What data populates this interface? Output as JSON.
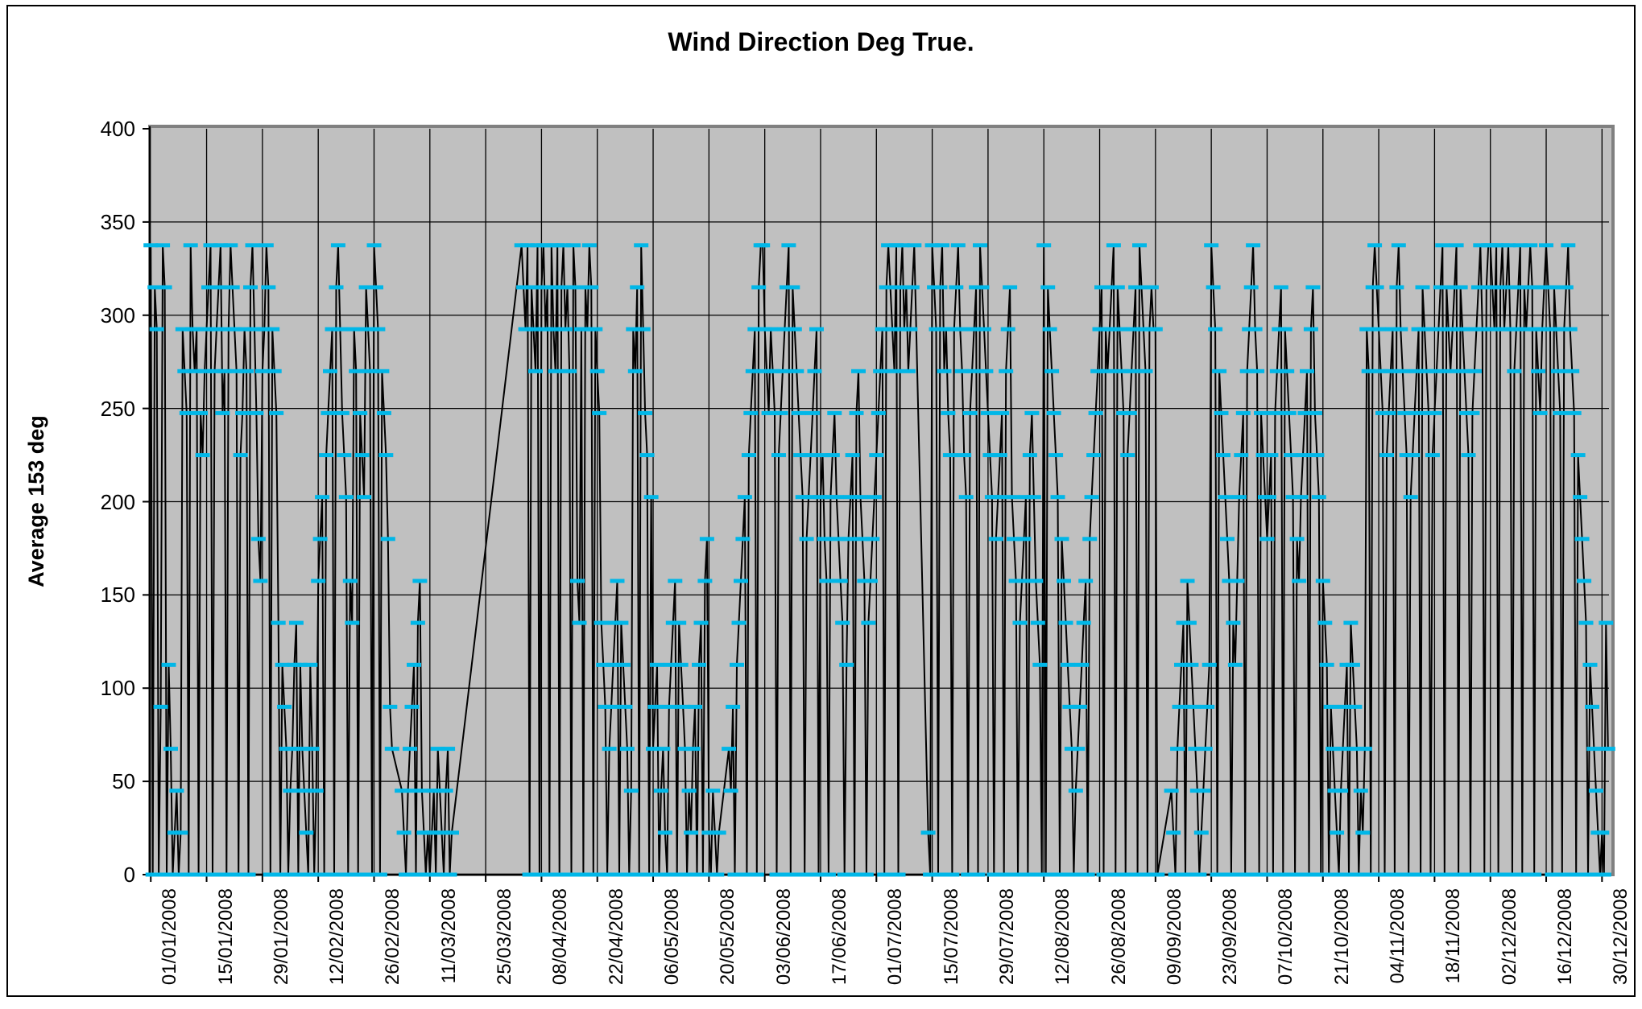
{
  "chart": {
    "title": "Wind Direction Deg True.",
    "y_axis_title": "Average 153 deg"
  },
  "chart_data": {
    "type": "line",
    "title": "Wind Direction Deg True.",
    "xlabel": "",
    "ylabel": "Average 153 deg",
    "ylim": [
      0,
      400
    ],
    "y_ticks": [
      0,
      50,
      100,
      150,
      200,
      250,
      300,
      350,
      400
    ],
    "x_tick_labels": [
      "01/01/2008",
      "15/01/2008",
      "29/01/2008",
      "12/02/2008",
      "26/02/2008",
      "11/03/2008",
      "25/03/2008",
      "08/04/2008",
      "22/04/2008",
      "06/05/2008",
      "20/05/2008",
      "03/06/2008",
      "17/06/2008",
      "01/07/2008",
      "15/07/2008",
      "29/07/2008",
      "12/08/2008",
      "26/08/2008",
      "09/09/2008",
      "23/09/2008",
      "07/10/2008",
      "21/10/2008",
      "04/11/2008",
      "18/11/2008",
      "02/12/2008",
      "16/12/2008",
      "30/12/2008"
    ],
    "x_tick_interval_days": 14,
    "points_per_day": 2,
    "start_date": "01/01/2008",
    "end_date": "31/12/2008",
    "value_quantization_deg": 22.5,
    "marker": "dash",
    "legend_position": "none",
    "grid": true,
    "gaps_interpolated": true,
    "colors": {
      "line": "#000000",
      "marker": "#00b7e8",
      "plot_bg": "#c0c0c0",
      "plot_border": "#808080",
      "grid": "#000000",
      "axis": "#000000",
      "text": "#000000",
      "chart_bg": "#ffffff"
    },
    "values": [
      337.5,
      0,
      315,
      292.5,
      0,
      90,
      337.5,
      315,
      0,
      112.5,
      67.5,
      0,
      22.5,
      45,
      0,
      22.5,
      292.5,
      270,
      247.5,
      0,
      337.5,
      292.5,
      270,
      292.5,
      0,
      247.5,
      225,
      270,
      292.5,
      315,
      337.5,
      0,
      270,
      292.5,
      315,
      337.5,
      247.5,
      270,
      0,
      292.5,
      337.5,
      315,
      292.5,
      270,
      0,
      225,
      247.5,
      292.5,
      270,
      0,
      315,
      337.5,
      292.5,
      247.5,
      180,
      157.5,
      270,
      292.5,
      337.5,
      315,
      0,
      292.5,
      270,
      247.5,
      135,
      0,
      112.5,
      90,
      67.5,
      0,
      45,
      67.5,
      112.5,
      135,
      0,
      112.5,
      67.5,
      45,
      22.5,
      0,
      112.5,
      67.5,
      0,
      45,
      157.5,
      180,
      202.5,
      0,
      225,
      247.5,
      270,
      292.5,
      0,
      315,
      337.5,
      292.5,
      247.5,
      225,
      202.5,
      0,
      157.5,
      135,
      292.5,
      270,
      0,
      247.5,
      225,
      202.5,
      315,
      292.5,
      270,
      0,
      337.5,
      315,
      292.5,
      0,
      270,
      247.5,
      225,
      180,
      90,
      67.5,
      null,
      null,
      null,
      null,
      45,
      22.5,
      0,
      45,
      67.5,
      90,
      112.5,
      0,
      135,
      157.5,
      45,
      22.5,
      0,
      22.5,
      0,
      22.5,
      45,
      0,
      67.5,
      45,
      22.5,
      0,
      45,
      67.5,
      0,
      22.5,
      null,
      null,
      null,
      null,
      null,
      null,
      null,
      null,
      null,
      null,
      null,
      null,
      null,
      null,
      null,
      null,
      null,
      null,
      null,
      null,
      null,
      null,
      null,
      null,
      null,
      null,
      null,
      null,
      null,
      null,
      null,
      null,
      null,
      null,
      337.5,
      315,
      292.5,
      337.5,
      0,
      315,
      292.5,
      270,
      337.5,
      0,
      315,
      337.5,
      292.5,
      315,
      0,
      337.5,
      292.5,
      270,
      337.5,
      0,
      315,
      337.5,
      292.5,
      315,
      270,
      0,
      337.5,
      315,
      157.5,
      135,
      292.5,
      0,
      315,
      292.5,
      337.5,
      315,
      0,
      292.5,
      270,
      247.5,
      135,
      112.5,
      90,
      0,
      67.5,
      90,
      112.5,
      135,
      157.5,
      0,
      135,
      112.5,
      90,
      67.5,
      0,
      45,
      292.5,
      270,
      315,
      0,
      337.5,
      292.5,
      247.5,
      225,
      0,
      202.5,
      67.5,
      90,
      112.5,
      0,
      45,
      67.5,
      22.5,
      0,
      90,
      112.5,
      135,
      157.5,
      0,
      135,
      112.5,
      90,
      67.5,
      0,
      45,
      22.5,
      67.5,
      90,
      0,
      112.5,
      135,
      0,
      157.5,
      180,
      22.5,
      0,
      45,
      22.5,
      0,
      22.5,
      null,
      null,
      null,
      null,
      67.5,
      45,
      90,
      0,
      112.5,
      135,
      157.5,
      180,
      202.5,
      0,
      225,
      247.5,
      270,
      292.5,
      0,
      315,
      337.5,
      337.5,
      292.5,
      270,
      247.5,
      292.5,
      270,
      247.5,
      0,
      225,
      247.5,
      270,
      292.5,
      315,
      337.5,
      0,
      315,
      292.5,
      270,
      247.5,
      225,
      202.5,
      0,
      180,
      202.5,
      225,
      247.5,
      270,
      292.5,
      0,
      202.5,
      225,
      180,
      157.5,
      0,
      202.5,
      225,
      247.5,
      202.5,
      180,
      157.5,
      135,
      0,
      112.5,
      180,
      202.5,
      225,
      0,
      247.5,
      270,
      202.5,
      180,
      157.5,
      0,
      135,
      157.5,
      180,
      202.5,
      225,
      247.5,
      270,
      292.5,
      0,
      315,
      337.5,
      315,
      292.5,
      270,
      337.5,
      0,
      315,
      337.5,
      292.5,
      315,
      270,
      292.5,
      315,
      337.5,
      null,
      null,
      null,
      null,
      null,
      null,
      22.5,
      0,
      337.5,
      315,
      292.5,
      0,
      315,
      337.5,
      270,
      292.5,
      247.5,
      225,
      0,
      292.5,
      315,
      337.5,
      292.5,
      270,
      225,
      202.5,
      0,
      247.5,
      270,
      292.5,
      315,
      0,
      337.5,
      315,
      292.5,
      270,
      247.5,
      225,
      202.5,
      0,
      180,
      202.5,
      225,
      247.5,
      0,
      270,
      292.5,
      315,
      202.5,
      180,
      157.5,
      0,
      135,
      157.5,
      180,
      202.5,
      0,
      225,
      247.5,
      202.5,
      157.5,
      135,
      112.5,
      0,
      337.5,
      0,
      315,
      292.5,
      270,
      247.5,
      225,
      202.5,
      0,
      180,
      157.5,
      135,
      112.5,
      90,
      67.5,
      0,
      45,
      67.5,
      90,
      112.5,
      135,
      157.5,
      0,
      180,
      202.5,
      225,
      247.5,
      270,
      292.5,
      315,
      0,
      292.5,
      270,
      292.5,
      315,
      337.5,
      0,
      315,
      292.5,
      270,
      247.5,
      0,
      225,
      247.5,
      270,
      292.5,
      315,
      0,
      337.5,
      315,
      292.5,
      270,
      0,
      292.5,
      315,
      292.5,
      292.5,
      0,
      null,
      null,
      null,
      null,
      null,
      null,
      45,
      22.5,
      0,
      67.5,
      90,
      112.5,
      135,
      0,
      157.5,
      135,
      112.5,
      90,
      67.5,
      45,
      0,
      22.5,
      45,
      67.5,
      90,
      112.5,
      337.5,
      315,
      292.5,
      0,
      270,
      247.5,
      225,
      202.5,
      180,
      157.5,
      0,
      135,
      112.5,
      157.5,
      202.5,
      225,
      247.5,
      0,
      270,
      292.5,
      315,
      337.5,
      292.5,
      270,
      0,
      247.5,
      225,
      202.5,
      180,
      202.5,
      225,
      0,
      247.5,
      270,
      292.5,
      315,
      0,
      292.5,
      270,
      247.5,
      225,
      202.5,
      0,
      180,
      157.5,
      202.5,
      225,
      247.5,
      270,
      0,
      292.5,
      315,
      247.5,
      225,
      202.5,
      0,
      157.5,
      135,
      112.5,
      0,
      90,
      67.5,
      45,
      22.5,
      0,
      45,
      67.5,
      90,
      112.5,
      0,
      135,
      112.5,
      90,
      67.5,
      0,
      45,
      22.5,
      67.5,
      292.5,
      270,
      0,
      315,
      337.5,
      315,
      292.5,
      270,
      247.5,
      0,
      225,
      247.5,
      270,
      292.5,
      0,
      315,
      337.5,
      292.5,
      270,
      247.5,
      225,
      0,
      202.5,
      225,
      247.5,
      270,
      292.5,
      0,
      315,
      292.5,
      270,
      247.5,
      0,
      225,
      247.5,
      270,
      292.5,
      315,
      337.5,
      0,
      315,
      292.5,
      270,
      292.5,
      315,
      337.5,
      0,
      315,
      292.5,
      270,
      247.5,
      225,
      0,
      247.5,
      270,
      292.5,
      315,
      337.5,
      292.5,
      0,
      315,
      337.5,
      337.5,
      315,
      292.5,
      337.5,
      0,
      315,
      337.5,
      292.5,
      315,
      337.5,
      292.5,
      0,
      270,
      292.5,
      315,
      337.5,
      0,
      315,
      292.5,
      315,
      337.5,
      315,
      0,
      292.5,
      270,
      247.5,
      292.5,
      315,
      337.5,
      315,
      292.5,
      0,
      315,
      292.5,
      270,
      247.5,
      0,
      292.5,
      315,
      337.5,
      292.5,
      270,
      247.5,
      0,
      225,
      202.5,
      180,
      157.5,
      135,
      0,
      112.5,
      90,
      67.5,
      45,
      22.5,
      0,
      22.5,
      0,
      135,
      67.5
    ]
  }
}
